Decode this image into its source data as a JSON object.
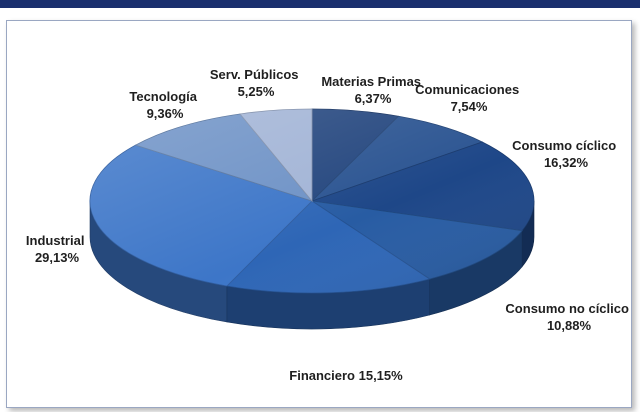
{
  "chart_data": {
    "type": "pie",
    "title": "",
    "slices": [
      {
        "name": "Materias Primas",
        "value": 6.37,
        "label": "6,37%",
        "color": "#25477f"
      },
      {
        "name": "Comunicaciones",
        "value": 7.54,
        "label": "7,54%",
        "color": "#2c5592"
      },
      {
        "name": "Consumo cíclico",
        "value": 16.32,
        "label": "16,32%",
        "color": "#1e4788"
      },
      {
        "name": "Consumo no cíclico",
        "value": 10.88,
        "label": "10,88%",
        "color": "#285ca3"
      },
      {
        "name": "Financiero",
        "value": 15.15,
        "label": "15,15%",
        "color": "#2e66b6"
      },
      {
        "name": "Industrial",
        "value": 29.13,
        "label": "29,13%",
        "color": "#3d76c8"
      },
      {
        "name": "Tecnología",
        "value": 9.36,
        "label": "9,36%",
        "color": "#6e92c6"
      },
      {
        "name": "Serv. Públicos",
        "value": 5.25,
        "label": "5,25%",
        "color": "#a2b4d6"
      }
    ],
    "style": "3d",
    "legend": "none",
    "data_labels": "outside"
  },
  "labels": {
    "materias_primas": {
      "name": "Materias Primas",
      "pct": "6,37%"
    },
    "comunicaciones": {
      "name": "Comunicaciones",
      "pct": "7,54%"
    },
    "consumo_ciclico": {
      "name": "Consumo cíclico",
      "pct": "16,32%"
    },
    "consumo_no_ciclico": {
      "name": "Consumo no cíclico",
      "pct": "10,88%"
    },
    "financiero": {
      "text": "Financiero 15,15%"
    },
    "industrial": {
      "name": "Industrial",
      "pct": "29,13%"
    },
    "tecnologia": {
      "name": "Tecnología",
      "pct": "9,36%"
    },
    "serv_publicos": {
      "name": "Serv. Públicos",
      "pct": "5,25%"
    }
  }
}
